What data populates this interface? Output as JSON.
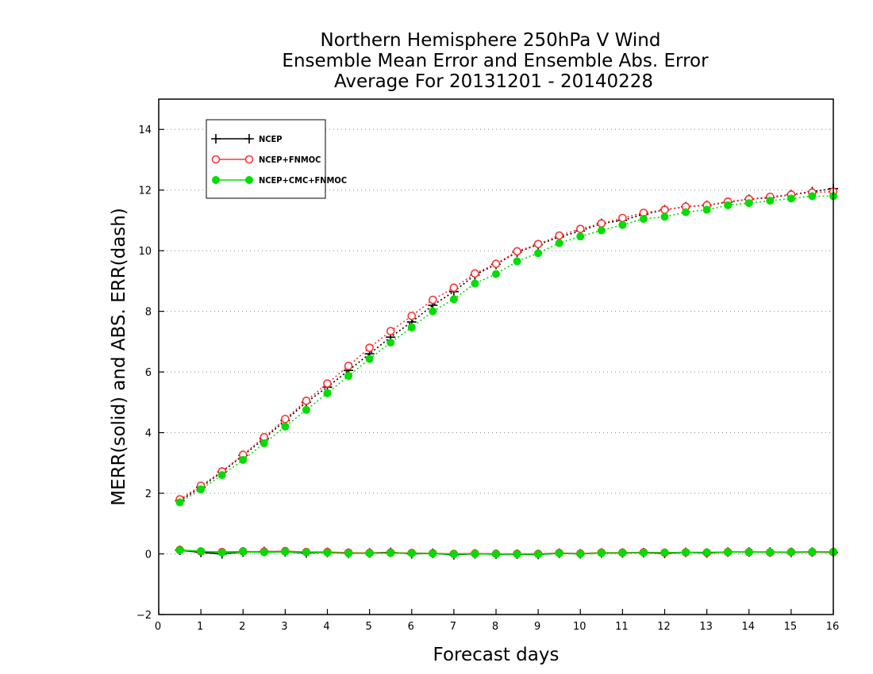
{
  "chart_data": {
    "type": "line",
    "title": [
      "Northern Hemisphere 250hPa V Wind",
      "Ensemble Mean Error and Ensemble Abs. Error",
      "Average For 20131201 - 20140228"
    ],
    "xlabel": "Forecast days",
    "ylabel": "MERR(solid) and ABS. ERR(dash)",
    "xlim": [
      0,
      16
    ],
    "ylim": [
      -2,
      15
    ],
    "xticks": [
      0,
      1,
      2,
      3,
      4,
      5,
      6,
      7,
      8,
      9,
      10,
      11,
      12,
      13,
      14,
      15,
      16
    ],
    "yticks": [
      -2,
      0,
      2,
      4,
      6,
      8,
      10,
      12,
      14
    ],
    "grid": "horizontal dotted",
    "legend_position": "top-left",
    "x": [
      0.5,
      1,
      1.5,
      2,
      2.5,
      3,
      3.5,
      4,
      4.5,
      5,
      5.5,
      6,
      6.5,
      7,
      7.5,
      8,
      8.5,
      9,
      9.5,
      10,
      10.5,
      11,
      11.5,
      12,
      12.5,
      13,
      13.5,
      14,
      14.5,
      15,
      15.5,
      16
    ],
    "series": [
      {
        "name": "NCEP",
        "color": "#000000",
        "marker": "plus",
        "mean_error": [
          0.12,
          0.05,
          0.0,
          0.06,
          0.08,
          0.07,
          0.03,
          0.05,
          0.02,
          0.03,
          0.05,
          0.0,
          0.02,
          -0.03,
          0.0,
          -0.01,
          -0.01,
          -0.02,
          0.02,
          0.0,
          0.03,
          0.03,
          0.04,
          0.02,
          0.05,
          0.03,
          0.06,
          0.06,
          0.06,
          0.05,
          0.06,
          0.05
        ],
        "abs_error": [
          1.75,
          2.2,
          2.7,
          3.25,
          3.8,
          4.4,
          5.0,
          5.5,
          6.05,
          6.6,
          7.15,
          7.65,
          8.2,
          8.65,
          9.2,
          9.55,
          9.95,
          10.2,
          10.45,
          10.65,
          10.9,
          11.0,
          11.2,
          11.35,
          11.45,
          11.5,
          11.6,
          11.7,
          11.75,
          11.85,
          11.95,
          12.05
        ]
      },
      {
        "name": "NCEP+FNMOC",
        "color": "#ff3333",
        "marker": "open-circle",
        "mean_error": [
          0.13,
          0.08,
          0.06,
          0.08,
          0.07,
          0.09,
          0.06,
          0.06,
          0.04,
          0.03,
          0.04,
          0.03,
          0.02,
          0.0,
          0.01,
          0.0,
          0.0,
          0.0,
          0.03,
          0.01,
          0.04,
          0.04,
          0.05,
          0.04,
          0.05,
          0.04,
          0.06,
          0.06,
          0.05,
          0.06,
          0.06,
          0.06
        ],
        "abs_error": [
          1.8,
          2.25,
          2.72,
          3.27,
          3.85,
          4.45,
          5.05,
          5.62,
          6.2,
          6.8,
          7.35,
          7.85,
          8.38,
          8.78,
          9.25,
          9.57,
          9.98,
          10.22,
          10.5,
          10.72,
          10.9,
          11.08,
          11.25,
          11.35,
          11.45,
          11.5,
          11.62,
          11.7,
          11.78,
          11.85,
          11.92,
          11.95
        ]
      },
      {
        "name": "NCEP+CMC+FNMOC",
        "color": "#00dd00",
        "marker": "filled-circle",
        "mean_error": [
          0.12,
          0.09,
          0.04,
          0.07,
          0.05,
          0.07,
          0.05,
          0.04,
          0.02,
          0.02,
          0.03,
          0.02,
          0.01,
          -0.01,
          0.0,
          -0.01,
          -0.01,
          -0.01,
          0.02,
          0.0,
          0.03,
          0.03,
          0.04,
          0.04,
          0.05,
          0.05,
          0.06,
          0.06,
          0.06,
          0.06,
          0.07,
          0.07
        ],
        "abs_error": [
          1.7,
          2.13,
          2.6,
          3.1,
          3.65,
          4.2,
          4.75,
          5.3,
          5.87,
          6.43,
          6.97,
          7.47,
          8.0,
          8.4,
          8.92,
          9.23,
          9.65,
          9.92,
          10.25,
          10.47,
          10.67,
          10.85,
          11.05,
          11.12,
          11.27,
          11.35,
          11.5,
          11.57,
          11.65,
          11.72,
          11.8,
          11.8
        ]
      }
    ]
  }
}
